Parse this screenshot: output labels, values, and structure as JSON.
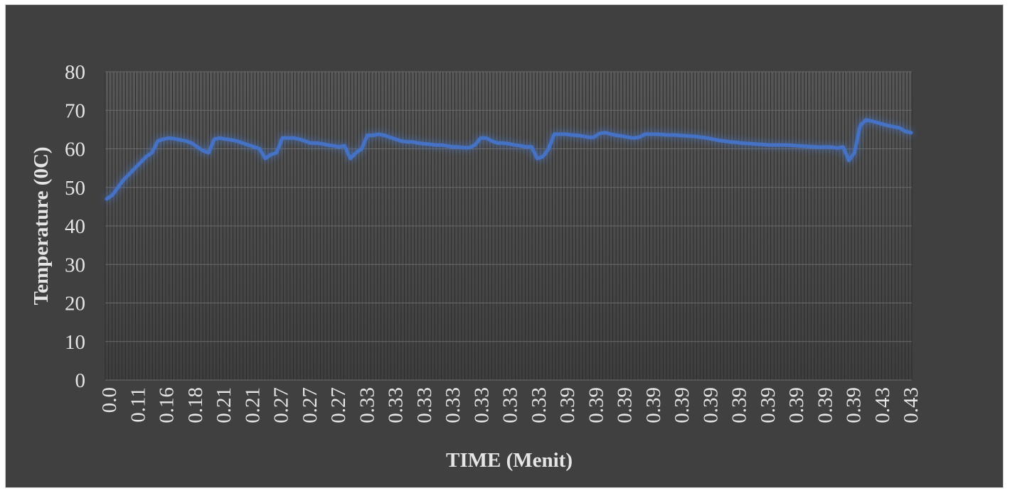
{
  "chart_data": {
    "type": "line",
    "title": "",
    "xlabel": "TIME (Menit)",
    "ylabel": "Temperature (0C)",
    "ylim": [
      0,
      80
    ],
    "yticks": [
      0,
      10,
      20,
      30,
      40,
      50,
      60,
      70,
      80
    ],
    "xticklabels": [
      "0.0",
      "0.11",
      "0.16",
      "0.18",
      "0.21",
      "0.21",
      "0.27",
      "0.27",
      "0.27",
      "0.33",
      "0.33",
      "0.33",
      "0.33",
      "0.33",
      "0.33",
      "0.33",
      "0.39",
      "0.39",
      "0.39",
      "0.39",
      "0.39",
      "0.39",
      "0.39",
      "0.39",
      "0.39",
      "0.39",
      "0.39",
      "0.43",
      "0.43"
    ],
    "grid": true,
    "legend": "none",
    "series": [
      {
        "name": "",
        "color": "#4472c4",
        "values": [
          47,
          48,
          50,
          52,
          53.5,
          55,
          56.5,
          58,
          59,
          62,
          62.5,
          62.8,
          62.6,
          62.3,
          62,
          61.5,
          60.5,
          59.5,
          59,
          62.5,
          62.8,
          62.5,
          62.3,
          62,
          61.5,
          61,
          60.5,
          60,
          57.5,
          58.5,
          59,
          62.8,
          62.8,
          62.8,
          62.5,
          62,
          61.5,
          61.5,
          61.3,
          61,
          60.8,
          60.5,
          60.8,
          57.5,
          59,
          60,
          63.5,
          63.5,
          63.8,
          63.5,
          63,
          62.5,
          62,
          61.8,
          61.8,
          61.5,
          61.3,
          61.2,
          61,
          61,
          60.8,
          60.5,
          60.5,
          60.3,
          60.3,
          61,
          62.8,
          62.8,
          62,
          61.5,
          61.5,
          61.3,
          61,
          60.8,
          60.5,
          60.5,
          57.5,
          58,
          60,
          63.8,
          63.8,
          63.8,
          63.6,
          63.5,
          63.3,
          63,
          63,
          64,
          64.2,
          63.8,
          63.5,
          63.3,
          63,
          62.8,
          63,
          63.8,
          63.8,
          63.8,
          63.7,
          63.6,
          63.6,
          63.5,
          63.4,
          63.3,
          63.2,
          63,
          62.8,
          62.5,
          62.2,
          62,
          61.8,
          61.7,
          61.5,
          61.4,
          61.3,
          61.2,
          61.1,
          61,
          61,
          61,
          61,
          60.9,
          60.8,
          60.7,
          60.6,
          60.5,
          60.4,
          60.5,
          60.4,
          60.2,
          60.5,
          57,
          59,
          66,
          67.5,
          67.2,
          66.8,
          66.4,
          66,
          65.7,
          65.4,
          64.5,
          64.2
        ]
      }
    ]
  }
}
